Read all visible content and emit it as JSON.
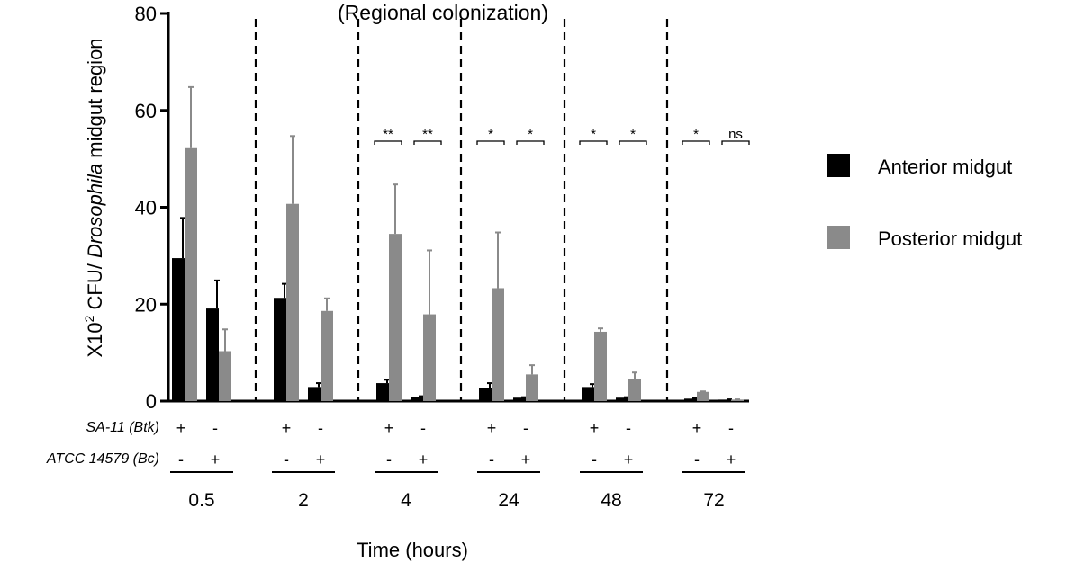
{
  "chart_data": {
    "type": "bar",
    "title": "(Regional colonization)",
    "ylabel": {
      "prefix": "X10",
      "sup": "2",
      "middle": " CFU/ ",
      "italic": "Drosophila",
      "suffix": " midgut region"
    },
    "xlabel": "Time (hours)",
    "ylim": [
      0,
      80
    ],
    "yticks": [
      0,
      20,
      40,
      60,
      80
    ],
    "series": [
      {
        "name": "Anterior midgut",
        "color": "#000000"
      },
      {
        "name": "Posterior midgut",
        "color": "#8a8a8a"
      }
    ],
    "row_labels": [
      "SA-11 (Btk)",
      "ATCC 14579 (Bc)"
    ],
    "groups": [
      {
        "time": "0.5",
        "significance": [
          "",
          ""
        ],
        "conditions": [
          {
            "btk": "+",
            "bc": "-",
            "anterior": 29.5,
            "anterior_err": 8.3,
            "posterior": 52.2,
            "posterior_err": 12.6
          },
          {
            "btk": "-",
            "bc": "+",
            "anterior": 19.1,
            "anterior_err": 5.8,
            "posterior": 10.3,
            "posterior_err": 4.5
          }
        ]
      },
      {
        "time": "2",
        "significance": [
          "",
          ""
        ],
        "conditions": [
          {
            "btk": "+",
            "bc": "-",
            "anterior": 21.3,
            "anterior_err": 2.9,
            "posterior": 40.7,
            "posterior_err": 14.0
          },
          {
            "btk": "-",
            "bc": "+",
            "anterior": 2.9,
            "anterior_err": 0.8,
            "posterior": 18.6,
            "posterior_err": 2.6
          }
        ]
      },
      {
        "time": "4",
        "significance": [
          "**",
          "**"
        ],
        "conditions": [
          {
            "btk": "+",
            "bc": "-",
            "anterior": 3.7,
            "anterior_err": 0.7,
            "posterior": 34.5,
            "posterior_err": 10.2
          },
          {
            "btk": "-",
            "bc": "+",
            "anterior": 0.9,
            "anterior_err": 0.1,
            "posterior": 17.9,
            "posterior_err": 13.2
          }
        ]
      },
      {
        "time": "24",
        "significance": [
          "*",
          "*"
        ],
        "conditions": [
          {
            "btk": "+",
            "bc": "-",
            "anterior": 2.6,
            "anterior_err": 1.1,
            "posterior": 23.3,
            "posterior_err": 11.5
          },
          {
            "btk": "-",
            "bc": "+",
            "anterior": 0.7,
            "anterior_err": 0.1,
            "posterior": 5.5,
            "posterior_err": 1.9
          }
        ]
      },
      {
        "time": "48",
        "significance": [
          "*",
          "*"
        ],
        "conditions": [
          {
            "btk": "+",
            "bc": "-",
            "anterior": 2.9,
            "anterior_err": 0.6,
            "posterior": 14.3,
            "posterior_err": 0.7
          },
          {
            "btk": "-",
            "bc": "+",
            "anterior": 0.7,
            "anterior_err": 0.1,
            "posterior": 4.5,
            "posterior_err": 1.4
          }
        ]
      },
      {
        "time": "72",
        "significance": [
          "*",
          "ns"
        ],
        "conditions": [
          {
            "btk": "+",
            "bc": "-",
            "anterior": 0.5,
            "anterior_err": 0.1,
            "posterior": 1.9,
            "posterior_err": 0.1
          },
          {
            "btk": "-",
            "bc": "+",
            "anterior": 0.3,
            "anterior_err": 0.05,
            "posterior": 0.3,
            "posterior_err": 0.05
          }
        ]
      }
    ]
  }
}
